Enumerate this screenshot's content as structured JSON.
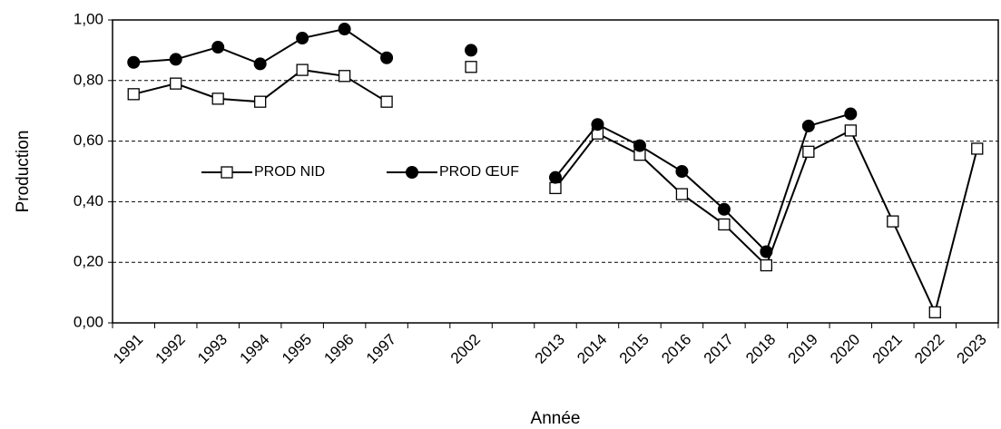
{
  "chart_data": {
    "type": "line",
    "x_label": "Année",
    "y_label": "Production",
    "categories": [
      "1991",
      "1992",
      "1993",
      "1994",
      "1995",
      "1996",
      "1997",
      null,
      "2002",
      null,
      "2013",
      "2014",
      "2015",
      "2016",
      "2017",
      "2018",
      "2019",
      "2020",
      "2021",
      "2022",
      "2023"
    ],
    "series": [
      {
        "name": "PROD NID",
        "color": "#000000",
        "marker": "square",
        "values": [
          0.755,
          0.79,
          0.74,
          0.73,
          0.835,
          0.815,
          0.73,
          null,
          0.845,
          null,
          0.445,
          0.625,
          0.555,
          0.425,
          0.325,
          0.19,
          0.565,
          0.635,
          0.335,
          0.035,
          0.575
        ]
      },
      {
        "name": "PROD ŒUF",
        "color": "#000000",
        "marker": "circle",
        "values": [
          0.86,
          0.87,
          0.91,
          0.855,
          0.94,
          0.97,
          0.875,
          null,
          0.9,
          null,
          0.48,
          0.655,
          0.585,
          0.5,
          0.375,
          0.235,
          0.65,
          0.69,
          null,
          null,
          null
        ]
      }
    ],
    "ylim": [
      0,
      1
    ],
    "yticks": [
      {
        "value": 0,
        "label": "0,00"
      },
      {
        "value": 0.2,
        "label": "0,20"
      },
      {
        "value": 0.4,
        "label": "0,40"
      },
      {
        "value": 0.6,
        "label": "0,60"
      },
      {
        "value": 0.8,
        "label": "0,80"
      },
      {
        "value": 1,
        "label": "1,00"
      }
    ],
    "grid": true
  }
}
